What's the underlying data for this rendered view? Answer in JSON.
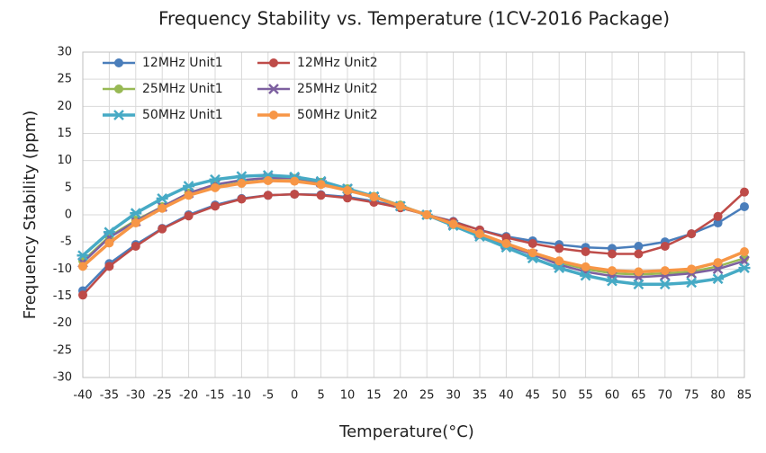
{
  "chart_data": {
    "type": "line",
    "title": "Frequency Stability vs. Temperature (1CV-2016 Package)",
    "x_label": "Temperature(°C)",
    "y_label": "Frequency Stability (ppm)",
    "x": [
      -40,
      -35,
      -30,
      -25,
      -20,
      -15,
      -10,
      -5,
      0,
      5,
      10,
      15,
      20,
      25,
      30,
      35,
      40,
      45,
      50,
      55,
      60,
      65,
      70,
      75,
      80,
      85
    ],
    "xlim": [
      -40,
      85
    ],
    "xticks": [
      -40,
      -35,
      -30,
      -25,
      -20,
      -15,
      -10,
      -5,
      0,
      5,
      10,
      15,
      20,
      25,
      30,
      35,
      40,
      45,
      50,
      55,
      60,
      65,
      70,
      75,
      80,
      85
    ],
    "ylim": [
      -30,
      30
    ],
    "yticks": [
      -30,
      -25,
      -20,
      -15,
      -10,
      -5,
      0,
      5,
      10,
      15,
      20,
      25,
      30
    ],
    "grid": true,
    "legend": "top-left",
    "series": [
      {
        "name": "12MHz Unit1",
        "color": "#4a7ebb",
        "marker": "circle",
        "width": 2.5,
        "values": [
          -14,
          -9,
          -5.5,
          -2.5,
          0,
          1.8,
          3,
          3.6,
          3.8,
          3.7,
          3.3,
          2.5,
          1.5,
          0,
          -1.2,
          -2.8,
          -4,
          -4.8,
          -5.5,
          -6,
          -6.2,
          -5.8,
          -5,
          -3.5,
          -1.5,
          1.5
        ]
      },
      {
        "name": "12MHz Unit2",
        "color": "#be4b48",
        "marker": "circle",
        "width": 2.5,
        "values": [
          -14.8,
          -9.5,
          -5.8,
          -2.6,
          -0.2,
          1.6,
          2.9,
          3.6,
          3.8,
          3.6,
          3.1,
          2.3,
          1.3,
          0,
          -1.3,
          -2.8,
          -4.2,
          -5.3,
          -6.2,
          -6.8,
          -7.2,
          -7.2,
          -5.8,
          -3.5,
          -0.3,
          4.2
        ]
      },
      {
        "name": "25MHz Unit1",
        "color": "#98b954",
        "marker": "circle",
        "width": 2.5,
        "values": [
          -8.5,
          -4,
          -1,
          1.5,
          4,
          5.5,
          6.3,
          6.8,
          6.7,
          6,
          4.8,
          3.4,
          1.8,
          0,
          -1.8,
          -3.6,
          -5.5,
          -7.2,
          -8.8,
          -10,
          -10.8,
          -11,
          -10.8,
          -10.5,
          -9.5,
          -8
        ]
      },
      {
        "name": "25MHz Unit2",
        "color": "#7d60a0",
        "marker": "x",
        "width": 2.5,
        "values": [
          -8.8,
          -4.2,
          -1.2,
          1.5,
          4,
          5.6,
          6.4,
          6.8,
          6.8,
          6,
          4.8,
          3.3,
          1.6,
          0,
          -1.8,
          -3.6,
          -5.6,
          -7.3,
          -9.2,
          -10.5,
          -11.3,
          -11.5,
          -11.2,
          -10.8,
          -10,
          -8.5
        ]
      },
      {
        "name": "50MHz Unit1",
        "color": "#46aac5",
        "marker": "star",
        "width": 3.5,
        "values": [
          -7.5,
          -3.2,
          0.3,
          3,
          5.3,
          6.5,
          7.1,
          7.3,
          7,
          6.2,
          4.8,
          3.4,
          1.6,
          0,
          -2,
          -4,
          -6,
          -8,
          -9.8,
          -11.2,
          -12.2,
          -12.8,
          -12.8,
          -12.5,
          -11.8,
          -9.8
        ]
      },
      {
        "name": "50MHz Unit2",
        "color": "#f79646",
        "marker": "circle",
        "width": 3.5,
        "values": [
          -9.5,
          -5.2,
          -1.5,
          1.2,
          3.6,
          5,
          5.8,
          6.3,
          6.2,
          5.6,
          4.5,
          3.3,
          1.6,
          0,
          -1.7,
          -3.5,
          -5.3,
          -7,
          -8.5,
          -9.6,
          -10.3,
          -10.5,
          -10.3,
          -10,
          -8.8,
          -6.8
        ]
      }
    ]
  }
}
